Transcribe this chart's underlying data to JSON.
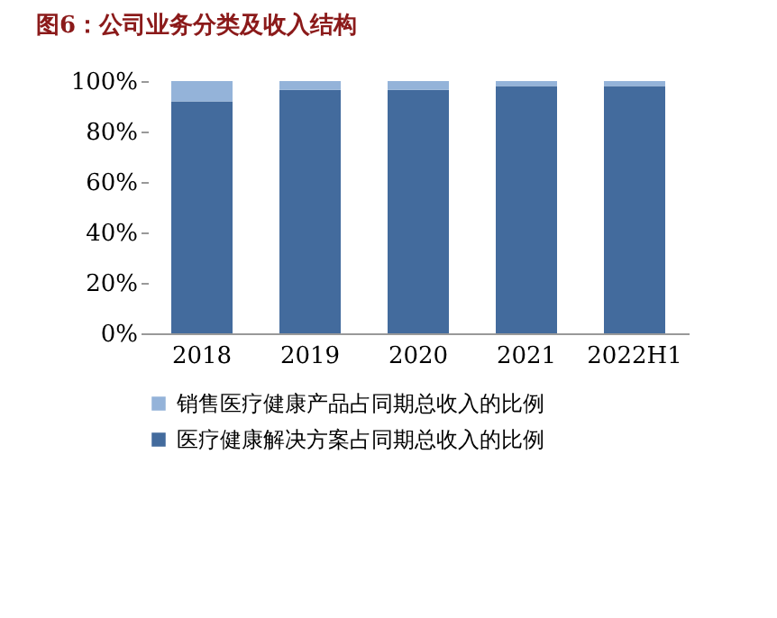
{
  "chart_data": {
    "type": "bar",
    "title": "图6：公司业务分类及收入结构",
    "stacked": true,
    "categories": [
      "2018",
      "2019",
      "2020",
      "2021",
      "2022H1"
    ],
    "series": [
      {
        "name": "医疗健康解决方案占同期总收入的比例",
        "color": "#436b9d",
        "values": [
          92,
          96.5,
          96.5,
          98,
          98
        ]
      },
      {
        "name": "销售医疗健康产品占同期总收入的比例",
        "color": "#94b3d9",
        "values": [
          8,
          3.5,
          3.5,
          2,
          2
        ]
      }
    ],
    "ylim": [
      0,
      100
    ],
    "yticks": [
      {
        "value": 0,
        "label": "0%"
      },
      {
        "value": 20,
        "label": "20%"
      },
      {
        "value": 40,
        "label": "40%"
      },
      {
        "value": 60,
        "label": "60%"
      },
      {
        "value": 80,
        "label": "80%"
      },
      {
        "value": 100,
        "label": "100%"
      }
    ],
    "grid": false,
    "legend": "bottom"
  }
}
